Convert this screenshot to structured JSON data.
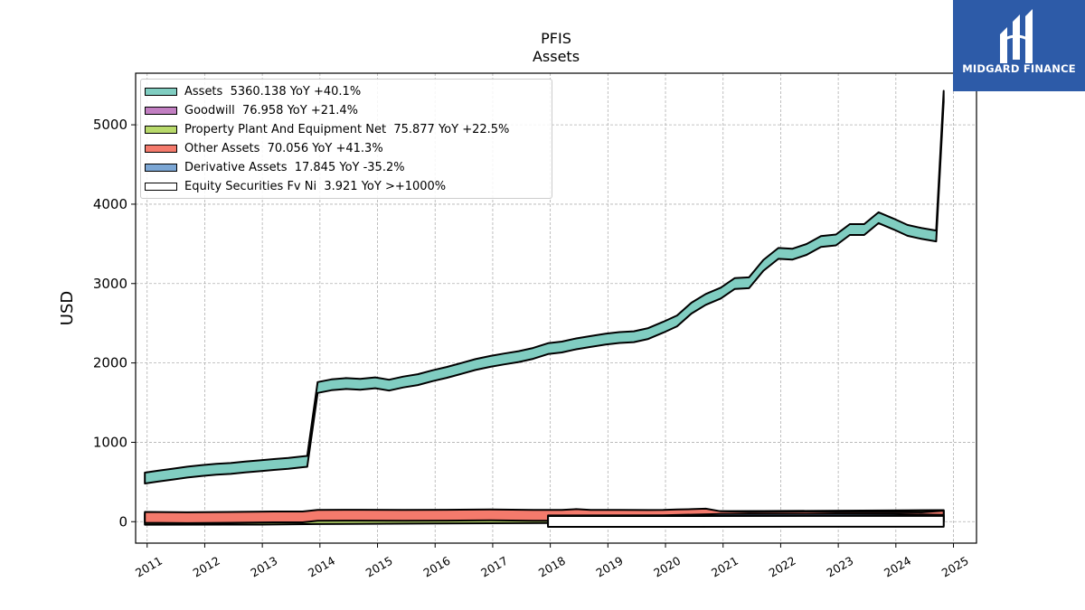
{
  "chart_data": {
    "type": "area",
    "title": "PFIS",
    "subtitle": "Assets",
    "ylabel": "USD",
    "xlabel": "",
    "xlim": [
      2010.8,
      2025.4
    ],
    "ylim": [
      -270,
      5650
    ],
    "yticks": [
      0,
      1000,
      2000,
      3000,
      4000,
      5000
    ],
    "xticks": [
      "2011",
      "2012",
      "2013",
      "2014",
      "2015",
      "2016",
      "2017",
      "2018",
      "2019",
      "2020",
      "2021",
      "2022",
      "2023",
      "2024",
      "2025"
    ],
    "grid": true,
    "legend_position": "top-left",
    "series": [
      {
        "name": "Assets",
        "legend": "Assets  5360.138 YoY +40.1%",
        "color": "#80cdc1",
        "x": [
          2010.96,
          2011.2,
          2011.45,
          2011.7,
          2011.96,
          2012.2,
          2012.45,
          2012.7,
          2012.96,
          2013.2,
          2013.45,
          2013.7,
          2013.78,
          2013.96,
          2014.2,
          2014.45,
          2014.7,
          2014.96,
          2015.2,
          2015.45,
          2015.7,
          2015.96,
          2016.2,
          2016.45,
          2016.7,
          2016.96,
          2017.2,
          2017.45,
          2017.7,
          2017.96,
          2018.2,
          2018.45,
          2018.7,
          2018.96,
          2019.2,
          2019.45,
          2019.7,
          2019.96,
          2020.2,
          2020.45,
          2020.7,
          2020.96,
          2021.2,
          2021.45,
          2021.7,
          2021.96,
          2022.2,
          2022.45,
          2022.7,
          2022.96,
          2023.2,
          2023.45,
          2023.7,
          2023.96,
          2024.2,
          2024.45,
          2024.7,
          2024.83
        ],
        "y": [
          550,
          575,
          600,
          625,
          645,
          660,
          670,
          690,
          705,
          720,
          735,
          755,
          760,
          1690,
          1725,
          1740,
          1730,
          1750,
          1720,
          1760,
          1790,
          1840,
          1880,
          1930,
          1980,
          2020,
          2050,
          2080,
          2120,
          2180,
          2200,
          2240,
          2270,
          2300,
          2320,
          2330,
          2370,
          2450,
          2530,
          2690,
          2800,
          2880,
          3000,
          3010,
          3230,
          3380,
          3370,
          3430,
          3530,
          3550,
          3680,
          3680,
          3830,
          3750,
          3670,
          3630,
          3600,
          5360
        ]
      },
      {
        "name": "Goodwill",
        "legend": "Goodwill  76.958 YoY +21.4%",
        "color": "#c27fc2",
        "x": [
          2013.96,
          2016.96,
          2020.96,
          2024.83
        ],
        "y": [
          63,
          63,
          63,
          77
        ]
      },
      {
        "name": "Property Plant And Equipment Net",
        "legend": "Property Plant And Equipment Net  75.877 YoY +22.5%",
        "color": "#b8d96b",
        "x": [
          2010.96,
          2012.96,
          2013.96,
          2015.96,
          2017.96,
          2019.96,
          2020.96,
          2022.96,
          2024.83
        ],
        "y": [
          30,
          32,
          38,
          45,
          52,
          60,
          62,
          63,
          76
        ]
      },
      {
        "name": "Other Assets",
        "legend": "Other Assets  70.056 YoY +41.3%",
        "color": "#f47a6c",
        "x": [
          2010.96,
          2011.7,
          2012.45,
          2013.2,
          2013.7,
          2013.96,
          2014.7,
          2015.45,
          2016.2,
          2016.96,
          2017.7,
          2018.2,
          2018.45,
          2018.7,
          2019.2,
          2019.7,
          2019.96,
          2020.2,
          2020.45,
          2020.7,
          2020.96,
          2021.45,
          2021.96,
          2022.45,
          2022.96,
          2023.45,
          2023.96,
          2024.45,
          2024.83
        ],
        "y": [
          55,
          50,
          55,
          60,
          60,
          80,
          82,
          80,
          82,
          85,
          80,
          80,
          90,
          80,
          80,
          78,
          80,
          85,
          90,
          95,
          62,
          55,
          58,
          60,
          55,
          52,
          50,
          50,
          70
        ]
      },
      {
        "name": "Derivative Assets",
        "legend": "Derivative Assets  17.845 YoY -35.2%",
        "color": "#7ba6d4",
        "x": [
          2017.96,
          2019.96,
          2020.96,
          2022.96,
          2023.96,
          2024.83
        ],
        "y": [
          10,
          12,
          28,
          30,
          27,
          18
        ]
      },
      {
        "name": "Equity Securities Fv Ni",
        "legend": "Equity Securities Fv Ni  3.921 YoY >+1000%",
        "color": "#ffffff",
        "x": [
          2017.96,
          2024.83
        ],
        "y": [
          3,
          3.9
        ]
      }
    ]
  },
  "logo": {
    "text": "MIDGARD FINANCE",
    "color": "#2d5ba8"
  }
}
